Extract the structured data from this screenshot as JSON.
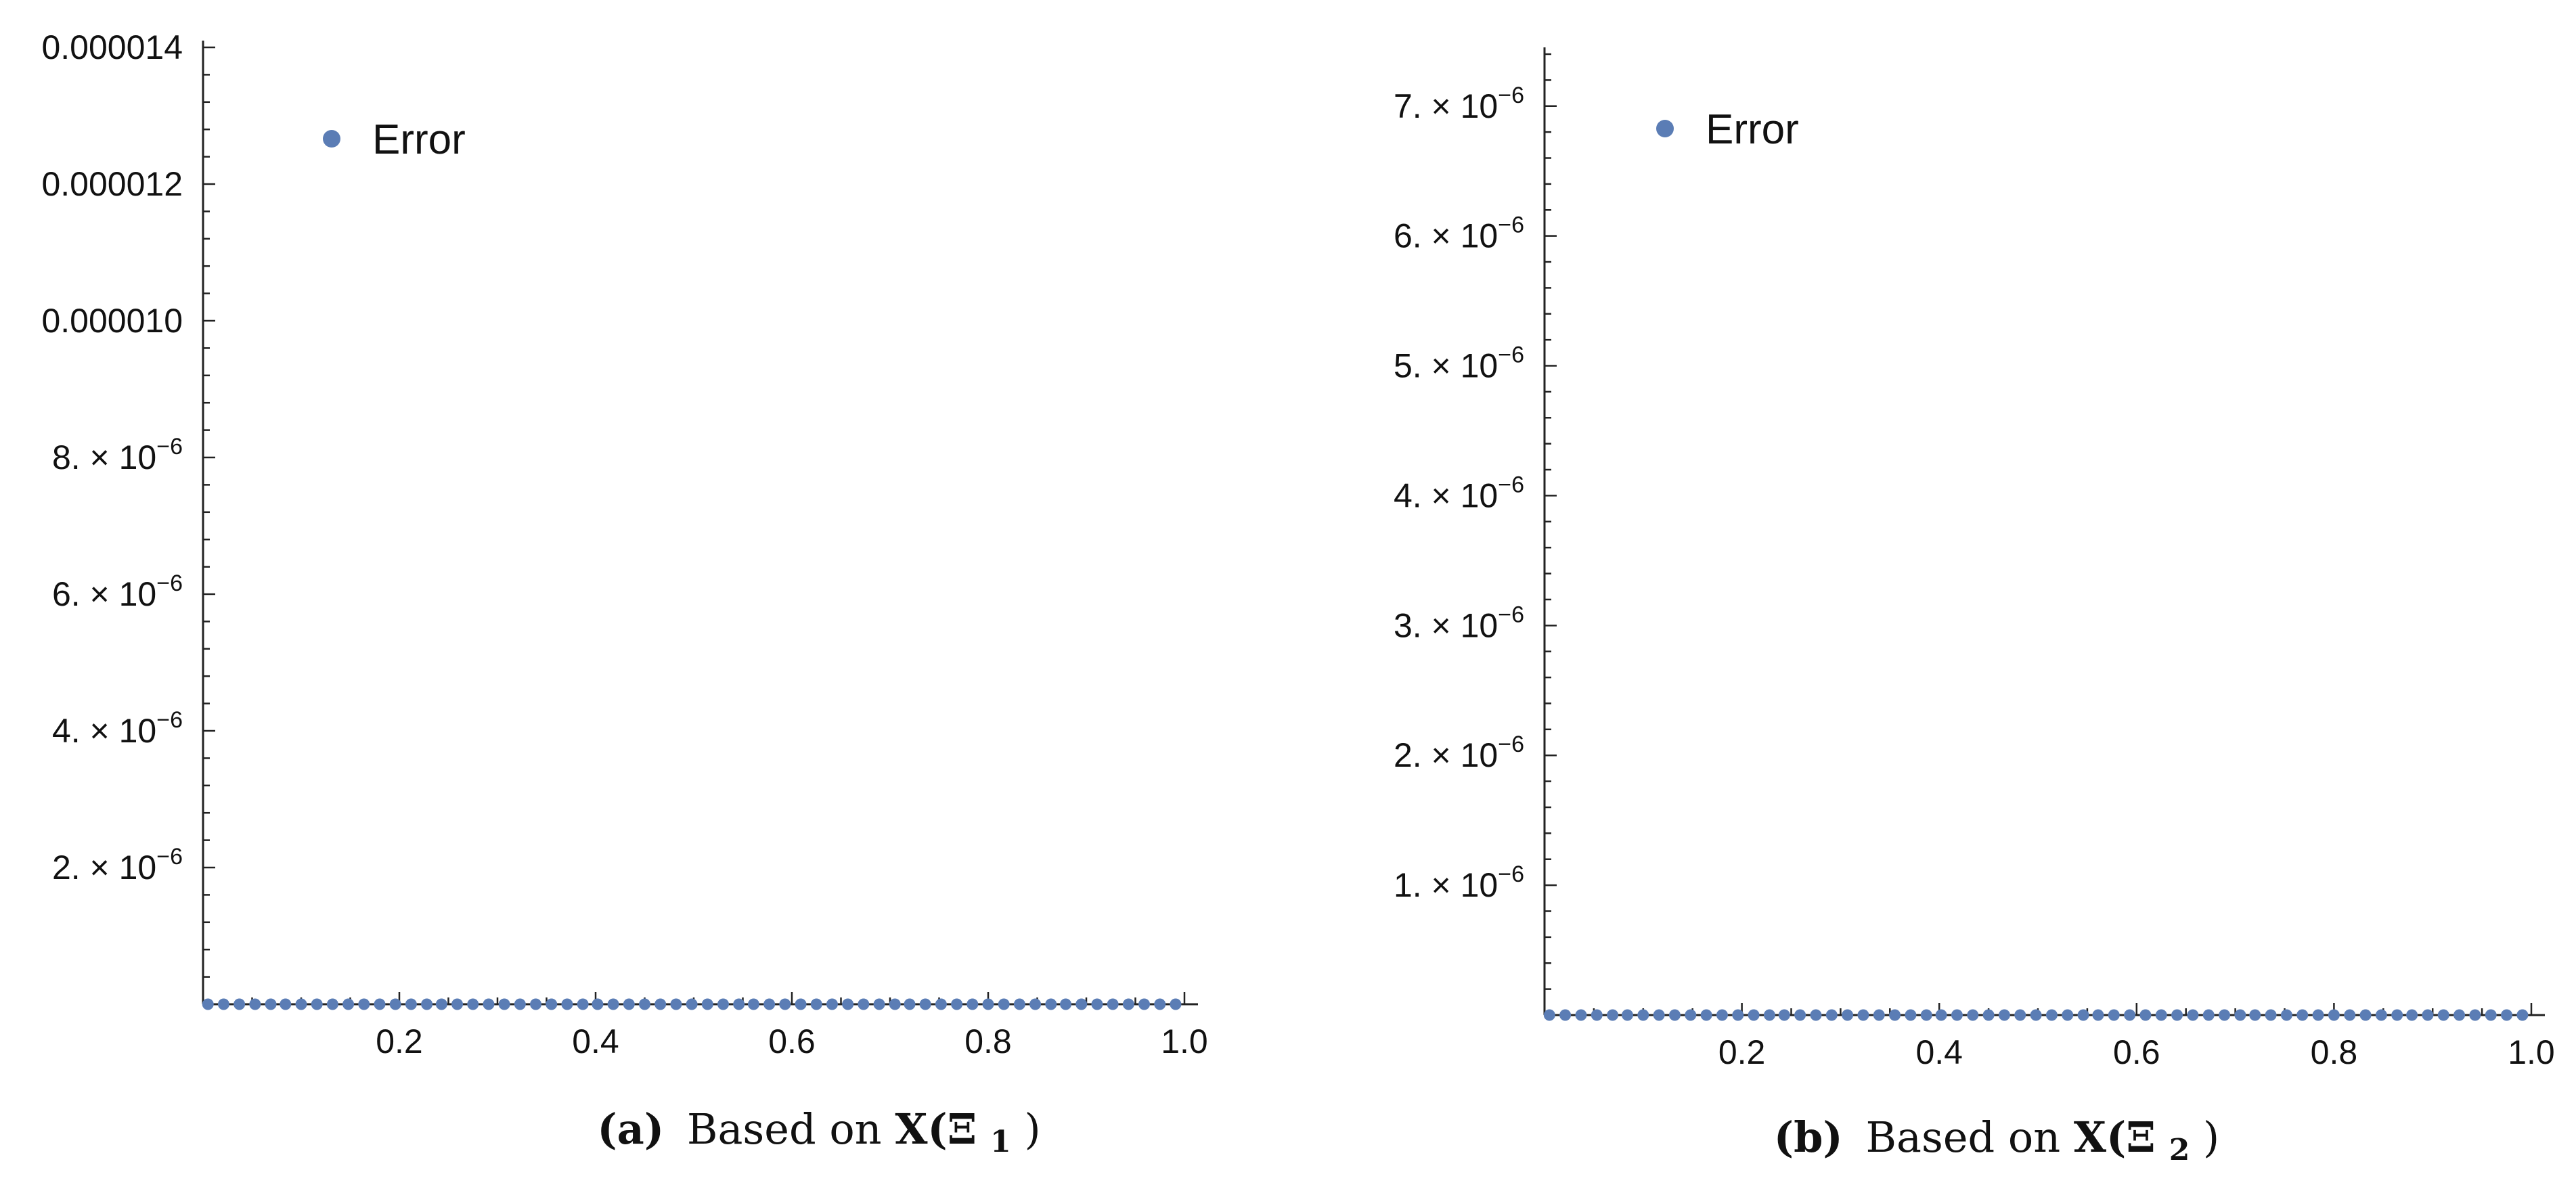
{
  "colors": {
    "series": "#5b7db5",
    "stem": "#c9d3ea",
    "axis": "#222222"
  },
  "chart_data": [
    {
      "type": "scatter",
      "style": "stem",
      "panel_tag": "(a)",
      "caption_text": "Based on ",
      "caption_math": "X(Ξ",
      "caption_sub": "1",
      "caption_close": ")",
      "legend": "Error",
      "legend_position": "top-left",
      "xlim": [
        0,
        1
      ],
      "ylim": [
        0,
        1.4e-05
      ],
      "x_ticks": [
        0.2,
        0.4,
        0.6,
        0.8,
        1.0
      ],
      "x_tick_labels": [
        "0.2",
        "0.4",
        "0.6",
        "0.8",
        "1.0"
      ],
      "y_ticks": [
        {
          "value": 2e-06,
          "mantissa": "2.",
          "exp": "−6"
        },
        {
          "value": 4e-06,
          "mantissa": "4.",
          "exp": "−6"
        },
        {
          "value": 6e-06,
          "mantissa": "6.",
          "exp": "−6"
        },
        {
          "value": 8e-06,
          "mantissa": "8.",
          "exp": "−6"
        },
        {
          "value": 1e-05,
          "label": "0.000010"
        },
        {
          "value": 1.2e-05,
          "label": "0.000012"
        },
        {
          "value": 1.4e-05,
          "label": "0.000014"
        }
      ],
      "series": [
        {
          "x": [
            0.005,
            0.021,
            0.037,
            0.053,
            0.069,
            0.084,
            0.1,
            0.116,
            0.132,
            0.148,
            0.164,
            0.18,
            0.196,
            0.212,
            0.228,
            0.243,
            0.259,
            0.275,
            0.291,
            0.307,
            0.323,
            0.339,
            0.355,
            0.371,
            0.387,
            0.402,
            0.418,
            0.434,
            0.45,
            0.466,
            0.482,
            0.498,
            0.514,
            0.53,
            0.546,
            0.561,
            0.577,
            0.593,
            0.609,
            0.625,
            0.641,
            0.657,
            0.673,
            0.689,
            0.705,
            0.72,
            0.736,
            0.752,
            0.768,
            0.784,
            0.8,
            0.816,
            0.832,
            0.848,
            0.864,
            0.879,
            0.895,
            0.911,
            0.927,
            0.943,
            0.959,
            0.975,
            0.991
          ],
          "y": [
            0.0,
            0.0,
            0.0,
            0.0,
            0.0,
            0.0,
            0.0,
            0.0,
            0.0,
            0.0,
            0.0,
            0.0,
            0.0,
            0.0,
            0.0,
            0.0,
            0.0,
            0.0,
            0.0,
            0.0,
            0.0,
            0.0,
            0.0,
            0.0,
            0.0,
            0.0,
            0.0,
            0.0,
            0.0,
            0.0,
            0.0,
            0.0,
            0.0,
            0.0,
            0.0,
            0.0,
            0.0,
            0.0,
            0.0,
            0.0,
            0.0,
            0.0,
            0.0,
            0.0,
            0.0,
            0.0,
            0.0,
            0.0,
            0.0,
            0.0,
            0.0,
            0.0,
            0.0,
            0.0,
            0.0,
            0.0,
            0.0,
            0.0,
            0.0,
            0.0,
            0.0,
            0.0,
            0.0
          ]
        }
      ]
    },
    {
      "type": "scatter",
      "style": "stem",
      "panel_tag": "(b)",
      "caption_text": "Based on ",
      "caption_math": "X(Ξ",
      "caption_sub": "2",
      "caption_close": ")",
      "legend": "Error",
      "legend_position": "top-left",
      "xlim": [
        0,
        1
      ],
      "ylim": [
        0,
        7.4e-06
      ],
      "x_ticks": [
        0.2,
        0.4,
        0.6,
        0.8,
        1.0
      ],
      "x_tick_labels": [
        "0.2",
        "0.4",
        "0.6",
        "0.8",
        "1.0"
      ],
      "y_ticks": [
        {
          "value": 1e-06,
          "mantissa": "1.",
          "exp": "−6"
        },
        {
          "value": 2e-06,
          "mantissa": "2.",
          "exp": "−6"
        },
        {
          "value": 3e-06,
          "mantissa": "3.",
          "exp": "−6"
        },
        {
          "value": 4e-06,
          "mantissa": "4.",
          "exp": "−6"
        },
        {
          "value": 5e-06,
          "mantissa": "5.",
          "exp": "−6"
        },
        {
          "value": 6e-06,
          "mantissa": "6.",
          "exp": "−6"
        },
        {
          "value": 7e-06,
          "mantissa": "7.",
          "exp": "−6"
        }
      ],
      "series": [
        {
          "x": [
            0.005,
            0.021,
            0.037,
            0.053,
            0.069,
            0.084,
            0.1,
            0.116,
            0.132,
            0.148,
            0.164,
            0.18,
            0.196,
            0.212,
            0.228,
            0.243,
            0.259,
            0.275,
            0.291,
            0.307,
            0.323,
            0.339,
            0.355,
            0.371,
            0.387,
            0.402,
            0.418,
            0.434,
            0.45,
            0.466,
            0.482,
            0.498,
            0.514,
            0.53,
            0.546,
            0.561,
            0.577,
            0.593,
            0.609,
            0.625,
            0.641,
            0.657,
            0.673,
            0.689,
            0.705,
            0.72,
            0.736,
            0.752,
            0.768,
            0.784,
            0.8,
            0.816,
            0.832,
            0.848,
            0.864,
            0.879,
            0.895,
            0.911,
            0.927,
            0.943,
            0.959,
            0.975,
            0.991
          ],
          "y": [
            0.0,
            0.0,
            0.0,
            0.0,
            0.0,
            0.0,
            0.0,
            0.0,
            0.0,
            0.0,
            0.0,
            0.0,
            0.0,
            0.0,
            0.0,
            0.0,
            0.0,
            0.0,
            0.0,
            0.0,
            0.0,
            0.0,
            0.0,
            0.0,
            0.0,
            0.0,
            0.0,
            0.0,
            0.0,
            0.0,
            0.0,
            0.0,
            0.0,
            0.0,
            0.0,
            0.0,
            0.0,
            0.0,
            0.0,
            0.0,
            0.0,
            0.0,
            0.0,
            0.0,
            0.0,
            0.0,
            0.0,
            0.0,
            0.0,
            0.0,
            0.0,
            0.0,
            0.0,
            0.0,
            0.0,
            0.0,
            0.0,
            0.0,
            0.0,
            0.0,
            0.0,
            0.0,
            0.0
          ]
        }
      ]
    }
  ]
}
